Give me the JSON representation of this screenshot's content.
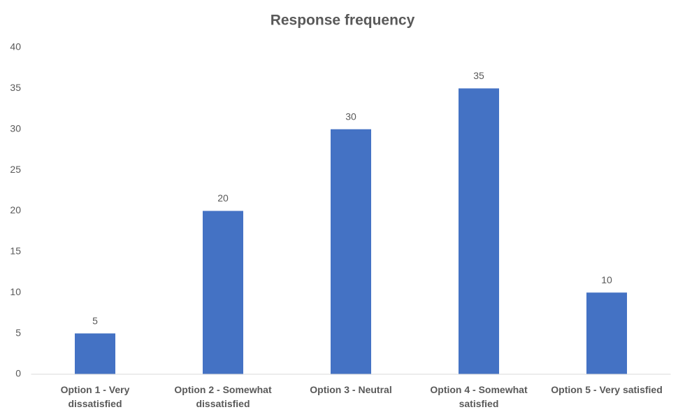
{
  "chart_data": {
    "type": "bar",
    "title": "Response frequency",
    "categories": [
      "Option 1 - Very dissatisfied",
      "Option 2 - Somewhat dissatisfied",
      "Option 3 - Neutral",
      "Option 4 - Somewhat satisfied",
      "Option 5 - Very satisfied"
    ],
    "values": [
      5,
      20,
      30,
      35,
      10
    ],
    "color": "#4472c4",
    "ylim": [
      0,
      40
    ],
    "yticks": [
      0,
      5,
      10,
      15,
      20,
      25,
      30,
      35,
      40
    ],
    "grid": false
  }
}
